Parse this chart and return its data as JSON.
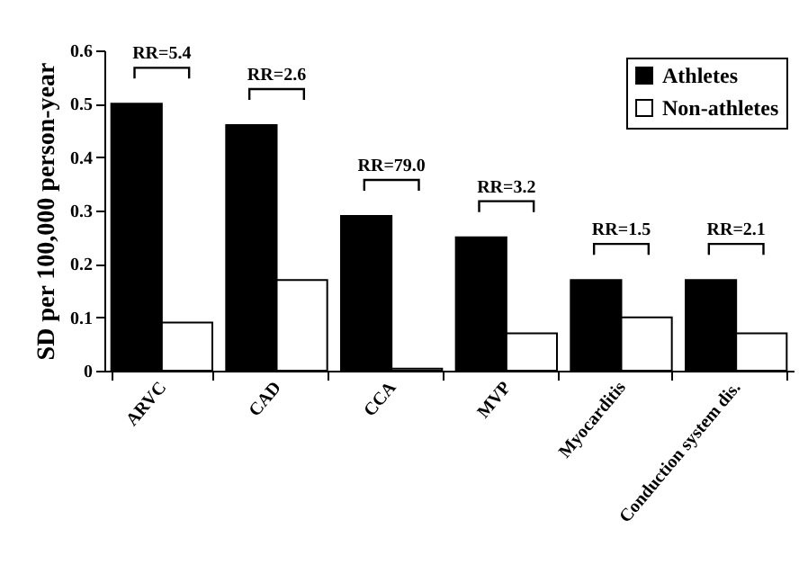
{
  "chart_data": {
    "type": "bar",
    "ylabel": "SD per 100,000 person-year",
    "categories": [
      "ARVC",
      "CAD",
      "CCA",
      "MVP",
      "Myocarditis",
      "Conduction system dis."
    ],
    "series": [
      {
        "name": "Athletes",
        "color": "#000000",
        "values": [
          0.5,
          0.46,
          0.29,
          0.25,
          0.17,
          0.17
        ]
      },
      {
        "name": "Non-athletes",
        "color": "#ffffff",
        "values": [
          0.09,
          0.17,
          0.004,
          0.07,
          0.1,
          0.07
        ]
      }
    ],
    "ylim": [
      0,
      0.6
    ],
    "yticks": [
      0,
      0.1,
      0.2,
      0.3,
      0.4,
      0.5,
      0.6
    ],
    "grid": false,
    "legend": "top right",
    "annotations": [
      "RR=5.4",
      "RR=2.6",
      "RR=79.0",
      "RR=3.2",
      "RR=1.5",
      "RR=2.1"
    ]
  }
}
